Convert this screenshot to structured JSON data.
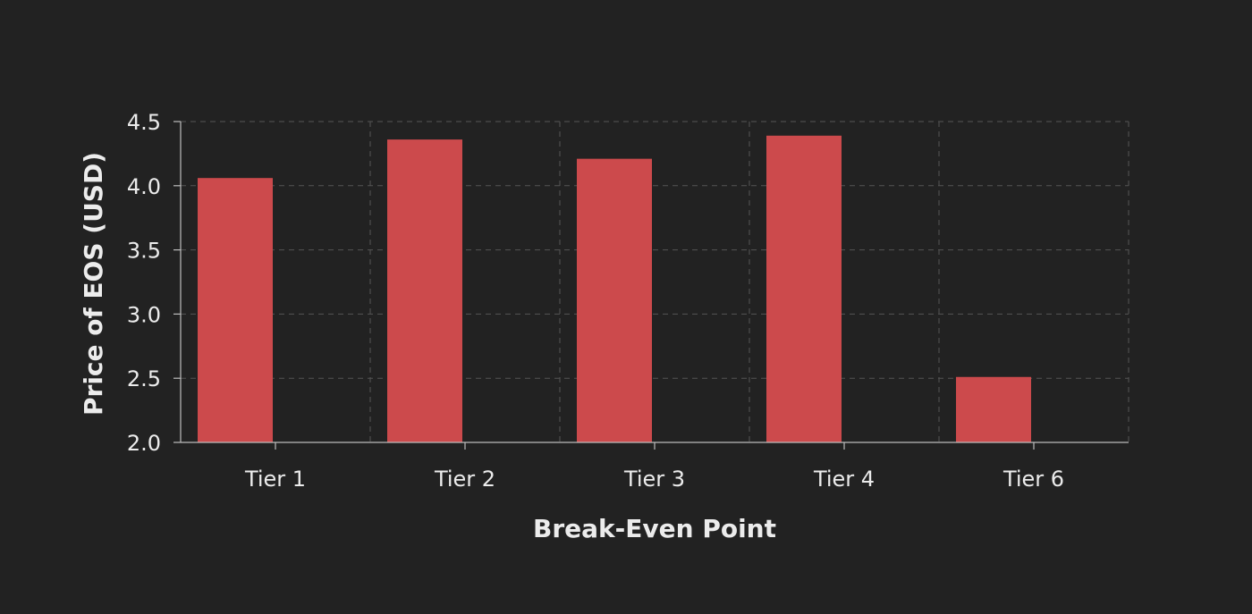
{
  "chart_data": {
    "type": "bar",
    "title": "",
    "xlabel": "Break-Even Point",
    "ylabel": "Price of EOS (USD)",
    "categories": [
      "Tier 1",
      "Tier 2",
      "Tier 3",
      "Tier 4",
      "Tier 6"
    ],
    "values": [
      4.06,
      4.36,
      4.21,
      4.39,
      2.51
    ],
    "ylim": [
      2.0,
      4.5
    ],
    "yticks": [
      "2.0",
      "2.5",
      "3.0",
      "3.5",
      "4.0",
      "4.5"
    ],
    "grid": true,
    "legend": "none",
    "bar_color": "#cc4a4c",
    "background_color": "#222222",
    "text_color": "#ececec"
  }
}
